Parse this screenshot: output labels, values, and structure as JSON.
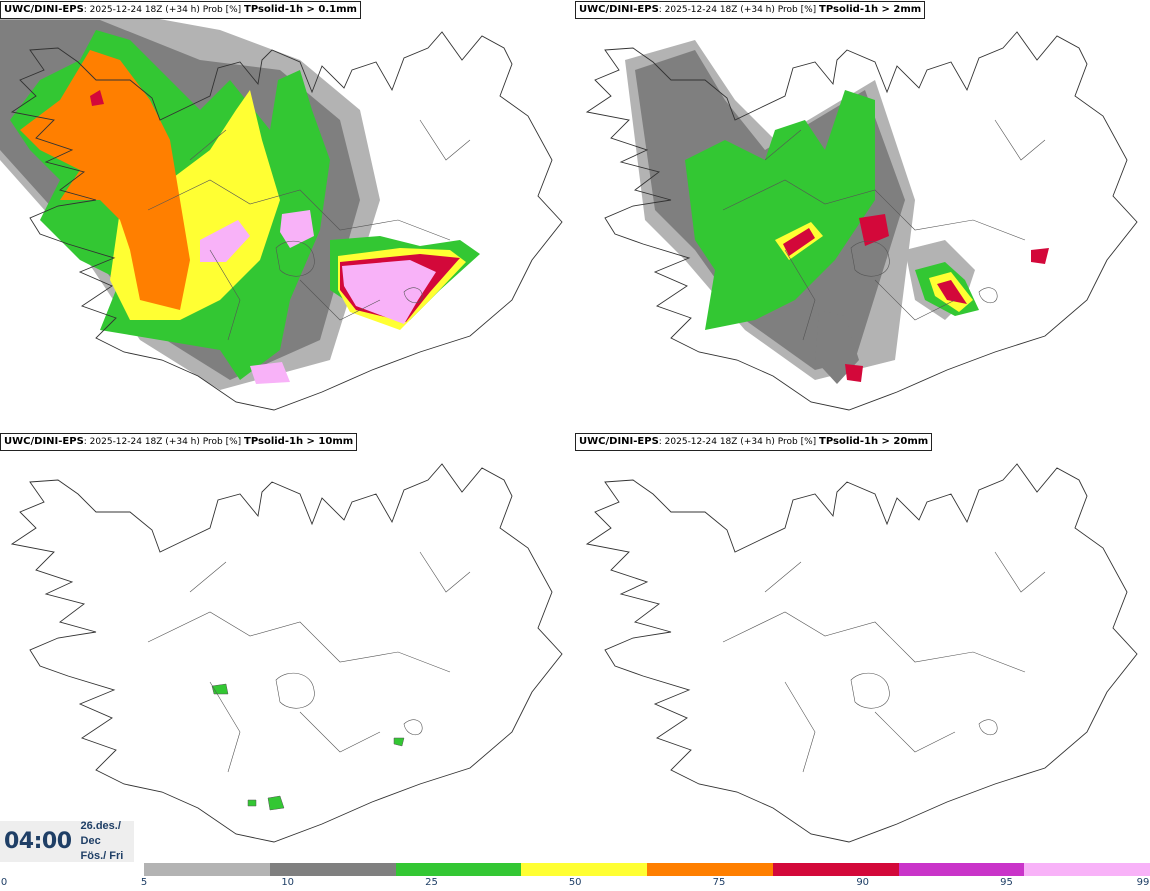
{
  "panels": [
    {
      "model": "UWC/DINI-EPS",
      "run": ": 2025-12-24 18Z (+34 h) Prob [%] ",
      "field": "TPsolid-1h > 0.1mm"
    },
    {
      "model": "UWC/DINI-EPS",
      "run": ": 2025-12-24 18Z (+34 h) Prob [%] ",
      "field": "TPsolid-1h > 2mm"
    },
    {
      "model": "UWC/DINI-EPS",
      "run": ": 2025-12-24 18Z (+34 h) Prob [%] ",
      "field": "TPsolid-1h > 10mm"
    },
    {
      "model": "UWC/DINI-EPS",
      "run": ": 2025-12-24 18Z (+34 h) Prob [%] ",
      "field": "TPsolid-1h > 20mm"
    }
  ],
  "valid_time": {
    "time": "04:00",
    "date": "26.des./ Dec",
    "day": "Fös./ Fri"
  },
  "colorbar": {
    "labels": [
      "0",
      "5",
      "10",
      "25",
      "50",
      "75",
      "90",
      "95",
      "99"
    ],
    "colors": [
      "#b3b3b3",
      "#7f7f7f",
      "#33c733",
      "#ffff33",
      "#ff7f00",
      "#d3083a",
      "#c934c9",
      "#f8b2f8"
    ]
  }
}
